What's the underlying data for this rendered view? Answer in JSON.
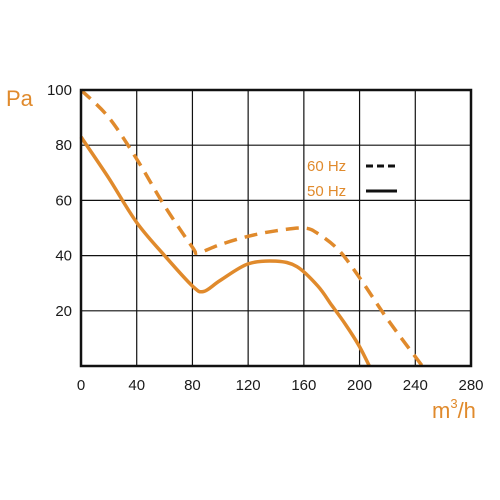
{
  "colors": {
    "curve": "#e08a2c",
    "axis": "#111111",
    "grid": "#111111",
    "text": "#1a1a1a"
  },
  "chart_data": {
    "type": "line",
    "title": "",
    "ylabel": "Pa",
    "xlabel_base": "m",
    "xlabel_sup": "3",
    "xlabel_tail": "/h",
    "xlim": [
      0,
      280
    ],
    "ylim": [
      0,
      100
    ],
    "xticks": [
      0,
      40,
      80,
      120,
      160,
      200,
      240,
      280
    ],
    "yticks": [
      20,
      40,
      60,
      80,
      100
    ],
    "grid": true,
    "legend_position": "top-right",
    "series": [
      {
        "name": "60 Hz",
        "style": "dashed",
        "x": [
          0,
          20,
          40,
          60,
          80,
          84,
          100,
          120,
          140,
          160,
          170,
          185,
          200,
          220,
          245
        ],
        "y": [
          100,
          90,
          75,
          58,
          43,
          41,
          44,
          47,
          49,
          50,
          48,
          42,
          32,
          17,
          0
        ]
      },
      {
        "name": "50 Hz",
        "style": "solid",
        "x": [
          0,
          20,
          40,
          60,
          80,
          88,
          100,
          120,
          140,
          155,
          170,
          180,
          190,
          200,
          207
        ],
        "y": [
          83,
          68,
          52,
          40,
          29,
          27,
          31,
          37,
          38,
          36,
          29,
          22,
          15,
          7,
          0
        ]
      }
    ]
  }
}
